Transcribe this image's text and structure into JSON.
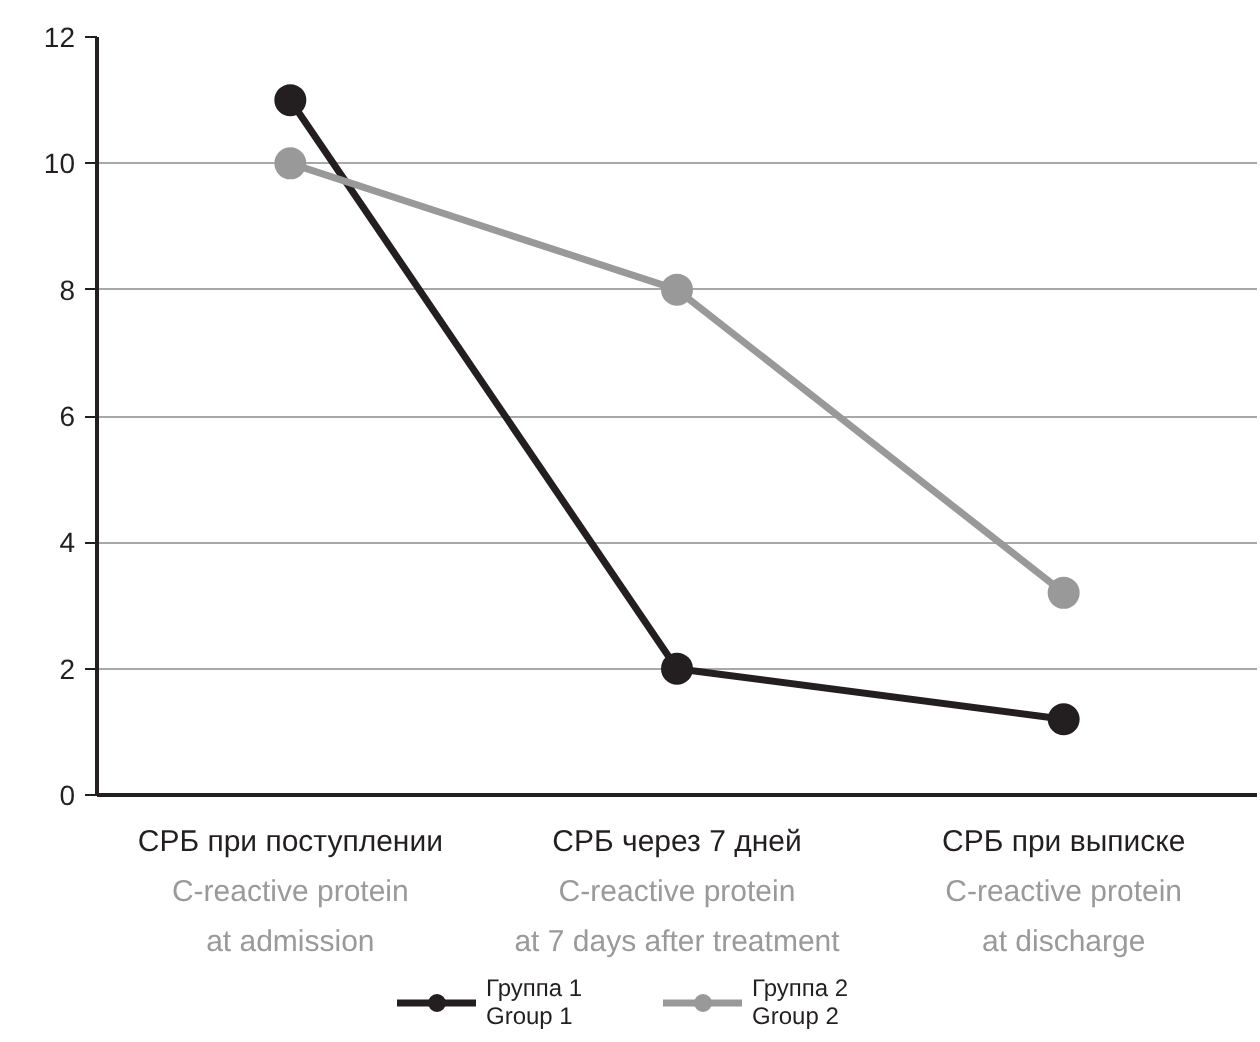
{
  "chart_data": {
    "type": "line",
    "categories": [
      "СРБ при поступлении\nC-reactive protein\nat admission",
      "СРБ через 7 дней\nC-reactive protein\nat 7 days after treatment",
      "СРБ при выписке\nC-reactive protein\nat discharge"
    ],
    "series": [
      {
        "name": "Группа 1\nGroup 1",
        "color": "#231f20",
        "values": [
          11,
          2,
          1.2
        ]
      },
      {
        "name": "Группа 2\nGroup 2",
        "color": "#999999",
        "values": [
          10,
          8,
          3.2
        ]
      }
    ],
    "ylim": [
      0,
      12
    ],
    "yticks": [
      0,
      2,
      4,
      6,
      8,
      10,
      12
    ],
    "grid": "y",
    "legend": "bottom",
    "marker": "circle",
    "line_style": "solid"
  }
}
